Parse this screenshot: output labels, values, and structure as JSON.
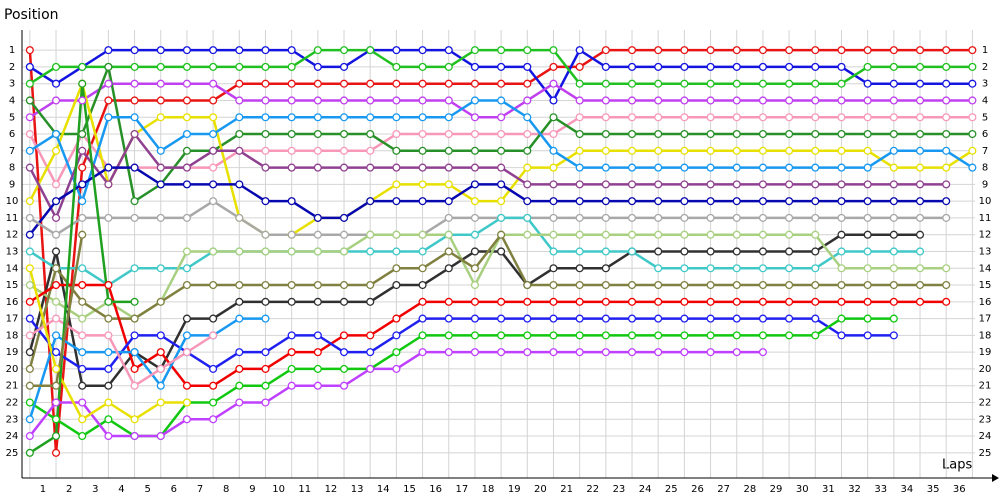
{
  "chart_data": {
    "type": "lap-chart",
    "y_label": "Position",
    "x_label": "Laps",
    "x": [
      0,
      1,
      2,
      3,
      4,
      5,
      6,
      7,
      8,
      9,
      10,
      11,
      12,
      13,
      14,
      15,
      16,
      17,
      18,
      19,
      20,
      21,
      22,
      23,
      24,
      25,
      26,
      27,
      28,
      29,
      30,
      31,
      32,
      33,
      34,
      35,
      36
    ],
    "xlim": [
      -0.3,
      36.1
    ],
    "ylim": [
      26.5,
      -0.2
    ],
    "grid": true,
    "yticks": [
      1,
      2,
      3,
      4,
      5,
      6,
      7,
      8,
      9,
      10,
      11,
      12,
      13,
      14,
      15,
      16,
      17,
      18,
      19,
      20,
      21,
      22,
      23,
      24,
      25
    ],
    "xticks": [
      {
        "value": 0.5,
        "label": "1"
      },
      {
        "value": 1.5,
        "label": "2"
      },
      {
        "value": 2.5,
        "label": "3"
      },
      {
        "value": 3.5,
        "label": "4"
      },
      {
        "value": 4.5,
        "label": "5"
      },
      {
        "value": 5.5,
        "label": "6"
      },
      {
        "value": 6.5,
        "label": "7"
      },
      {
        "value": 7.5,
        "label": "8"
      },
      {
        "value": 8.5,
        "label": "9"
      },
      {
        "value": 9.5,
        "label": "10"
      },
      {
        "value": 10.5,
        "label": "11"
      },
      {
        "value": 11.5,
        "label": "12"
      },
      {
        "value": 12.5,
        "label": "13"
      },
      {
        "value": 13.5,
        "label": "14"
      },
      {
        "value": 14.5,
        "label": "15"
      },
      {
        "value": 15.5,
        "label": "16"
      },
      {
        "value": 16.5,
        "label": "17"
      },
      {
        "value": 17.5,
        "label": "18"
      },
      {
        "value": 18.5,
        "label": "19"
      },
      {
        "value": 19.5,
        "label": "20"
      },
      {
        "value": 20.5,
        "label": "21"
      },
      {
        "value": 21.5,
        "label": "22"
      },
      {
        "value": 22.5,
        "label": "23"
      },
      {
        "value": 23.5,
        "label": "24"
      },
      {
        "value": 24.5,
        "label": "25"
      },
      {
        "value": 25.5,
        "label": "26"
      },
      {
        "value": 26.5,
        "label": "27"
      },
      {
        "value": 27.5,
        "label": "28"
      },
      {
        "value": 28.5,
        "label": "29"
      },
      {
        "value": 29.5,
        "label": "30"
      },
      {
        "value": 30.5,
        "label": "31"
      },
      {
        "value": 31.5,
        "label": "32"
      },
      {
        "value": 32.5,
        "label": "33"
      },
      {
        "value": 33.5,
        "label": "34"
      },
      {
        "value": 34.5,
        "label": "35"
      },
      {
        "value": 35.5,
        "label": "36"
      }
    ],
    "series": [
      {
        "color": "#e81414",
        "values": [
          1,
          25,
          8,
          4,
          4,
          4,
          4,
          4,
          3,
          3,
          3,
          3,
          3,
          3,
          3,
          3,
          3,
          3,
          3,
          3,
          2,
          2,
          1,
          1,
          1,
          1,
          1,
          1,
          1,
          1,
          1,
          1,
          1,
          1,
          1,
          1,
          1
        ]
      },
      {
        "color": "#1414e0",
        "values": [
          2,
          3,
          2,
          1,
          1,
          1,
          1,
          1,
          1,
          1,
          1,
          2,
          2,
          1,
          1,
          1,
          1,
          2,
          2,
          2,
          4,
          1,
          2,
          2,
          2,
          2,
          2,
          2,
          2,
          2,
          2,
          2,
          3,
          3,
          3,
          3,
          3
        ]
      },
      {
        "color": "#20c020",
        "values": [
          3,
          2,
          2,
          2,
          2,
          2,
          2,
          2,
          2,
          2,
          2,
          1,
          1,
          1,
          2,
          2,
          2,
          1,
          1,
          1,
          1,
          3,
          3,
          3,
          3,
          3,
          3,
          3,
          3,
          3,
          3,
          3,
          2,
          2,
          2,
          2,
          2
        ]
      },
      {
        "color": "#c040f0",
        "values": [
          5,
          4,
          4,
          3,
          3,
          3,
          3,
          3,
          4,
          4,
          4,
          4,
          4,
          4,
          4,
          4,
          4,
          5,
          5,
          4,
          3,
          4,
          4,
          4,
          4,
          4,
          4,
          4,
          4,
          4,
          4,
          4,
          4,
          4,
          4,
          4,
          4
        ]
      },
      {
        "color": "#f898b8",
        "values": [
          6,
          9,
          6,
          8,
          8,
          8,
          8,
          8,
          7,
          7,
          7,
          7,
          7,
          7,
          6,
          6,
          6,
          6,
          6,
          6,
          6,
          5,
          5,
          5,
          5,
          5,
          5,
          5,
          5,
          5,
          5,
          5,
          5,
          5,
          5,
          5,
          5
        ]
      },
      {
        "color": "#289028",
        "values": [
          4,
          6,
          6,
          2,
          10,
          9,
          7,
          7,
          6,
          6,
          6,
          6,
          6,
          6,
          7,
          7,
          7,
          7,
          7,
          7,
          5,
          6,
          6,
          6,
          6,
          6,
          6,
          6,
          6,
          6,
          6,
          6,
          6,
          6,
          6,
          6,
          6
        ]
      },
      {
        "color": "#e8e000",
        "values": [
          10,
          7,
          3,
          9,
          6,
          5,
          5,
          5,
          11,
          12,
          12,
          11,
          11,
          10,
          9,
          9,
          9,
          10,
          10,
          8,
          8,
          7,
          7,
          7,
          7,
          7,
          7,
          7,
          7,
          7,
          7,
          7,
          7,
          8,
          8,
          8,
          7
        ]
      },
      {
        "color": "#1898f0",
        "values": [
          7,
          6,
          10,
          5,
          5,
          7,
          6,
          6,
          5,
          5,
          5,
          5,
          5,
          5,
          5,
          5,
          5,
          4,
          4,
          5,
          7,
          8,
          8,
          8,
          8,
          8,
          8,
          8,
          8,
          8,
          8,
          8,
          8,
          7,
          7,
          7,
          8
        ]
      },
      {
        "color": "#904090",
        "values": [
          8,
          11,
          7,
          9,
          6,
          8,
          8,
          7,
          7,
          8,
          8,
          8,
          8,
          8,
          8,
          8,
          8,
          8,
          8,
          9,
          9,
          9,
          9,
          9,
          9,
          9,
          9,
          9,
          9,
          9,
          9,
          9,
          9,
          9,
          9,
          9,
          null
        ]
      },
      {
        "color": "#0808b0",
        "values": [
          12,
          10,
          9,
          8,
          8,
          9,
          9,
          9,
          9,
          10,
          10,
          11,
          11,
          10,
          10,
          10,
          10,
          9,
          9,
          10,
          10,
          10,
          10,
          10,
          10,
          10,
          10,
          10,
          10,
          10,
          10,
          10,
          10,
          10,
          10,
          10,
          null
        ]
      },
      {
        "color": "#a8a8a8",
        "values": [
          11,
          12,
          11,
          11,
          11,
          11,
          11,
          10,
          11,
          12,
          12,
          12,
          12,
          12,
          12,
          12,
          11,
          11,
          11,
          11,
          11,
          11,
          11,
          11,
          11,
          11,
          11,
          11,
          11,
          11,
          11,
          11,
          11,
          11,
          11,
          11,
          null
        ]
      },
      {
        "color": "#303030",
        "values": [
          19,
          13,
          21,
          21,
          19,
          20,
          17,
          17,
          16,
          16,
          16,
          16,
          16,
          16,
          15,
          15,
          14,
          13,
          13,
          15,
          14,
          14,
          14,
          13,
          13,
          13,
          13,
          13,
          13,
          13,
          13,
          12,
          12,
          12,
          12,
          null,
          null
        ]
      },
      {
        "color": "#40c8c8",
        "values": [
          13,
          14,
          14,
          15,
          14,
          14,
          14,
          13,
          13,
          13,
          13,
          13,
          13,
          13,
          13,
          13,
          12,
          12,
          11,
          11,
          13,
          13,
          13,
          13,
          14,
          14,
          14,
          14,
          14,
          14,
          14,
          13,
          13,
          13,
          13,
          null,
          null
        ]
      },
      {
        "color": "#a8d080",
        "values": [
          15,
          16,
          17,
          16,
          17,
          16,
          13,
          13,
          13,
          13,
          13,
          13,
          13,
          12,
          12,
          12,
          12,
          15,
          12,
          12,
          12,
          12,
          12,
          12,
          12,
          12,
          12,
          12,
          12,
          12,
          12,
          14,
          14,
          14,
          14,
          14,
          null
        ]
      },
      {
        "color": "#808040",
        "values": [
          20,
          14,
          16,
          17,
          17,
          16,
          15,
          15,
          15,
          15,
          15,
          15,
          15,
          15,
          14,
          14,
          13,
          14,
          12,
          15,
          15,
          15,
          15,
          15,
          15,
          15,
          15,
          15,
          15,
          15,
          15,
          15,
          15,
          15,
          15,
          15,
          null
        ]
      },
      {
        "color": "#f00000",
        "values": [
          16,
          15,
          15,
          15,
          20,
          19,
          21,
          21,
          20,
          20,
          19,
          19,
          18,
          18,
          17,
          16,
          16,
          16,
          16,
          16,
          16,
          16,
          16,
          16,
          16,
          16,
          16,
          16,
          16,
          16,
          16,
          16,
          16,
          16,
          16,
          16,
          null
        ]
      },
      {
        "color": "#2020f0",
        "values": [
          17,
          19,
          20,
          20,
          18,
          18,
          19,
          20,
          19,
          19,
          18,
          18,
          19,
          19,
          18,
          17,
          17,
          17,
          17,
          17,
          17,
          17,
          17,
          17,
          17,
          17,
          17,
          17,
          17,
          17,
          17,
          18,
          18,
          18,
          null,
          null,
          null
        ]
      },
      {
        "color": "#10c810",
        "values": [
          22,
          23,
          24,
          23,
          24,
          24,
          22,
          22,
          21,
          21,
          20,
          20,
          20,
          20,
          19,
          18,
          18,
          18,
          18,
          18,
          18,
          18,
          18,
          18,
          18,
          18,
          18,
          18,
          18,
          18,
          18,
          17,
          17,
          17,
          null,
          null,
          null
        ]
      },
      {
        "color": "#c040ff",
        "values": [
          24,
          22,
          22,
          24,
          24,
          24,
          23,
          23,
          22,
          22,
          21,
          21,
          21,
          20,
          20,
          19,
          19,
          19,
          19,
          19,
          19,
          19,
          19,
          19,
          19,
          19,
          19,
          19,
          19,
          null,
          null,
          null,
          null,
          null,
          null,
          null,
          null
        ]
      },
      {
        "color": "#1898f0",
        "values": [
          23,
          18,
          19,
          19,
          19,
          21,
          18,
          18,
          17,
          17,
          null,
          null,
          null,
          null,
          null,
          null,
          null,
          null,
          null,
          null,
          null,
          null,
          null,
          null,
          null,
          null,
          null,
          null,
          null,
          null,
          null,
          null,
          null,
          null,
          null,
          null,
          null
        ]
      },
      {
        "color": "#f898b8",
        "values": [
          18,
          17,
          18,
          18,
          21,
          20,
          19,
          18,
          null,
          null,
          null,
          null,
          null,
          null,
          null,
          null,
          null,
          null,
          null,
          null,
          null,
          null,
          null,
          null,
          null,
          null,
          null,
          null,
          null,
          null,
          null,
          null,
          null,
          null,
          null,
          null,
          null
        ]
      },
      {
        "color": "#e8e000",
        "values": [
          14,
          20,
          23,
          22,
          23,
          22,
          22,
          null,
          null,
          null,
          null,
          null,
          null,
          null,
          null,
          null,
          null,
          null,
          null,
          null,
          null,
          null,
          null,
          null,
          null,
          null,
          null,
          null,
          null,
          null,
          null,
          null,
          null,
          null,
          null,
          null,
          null
        ]
      },
      {
        "color": "#20a020",
        "values": [
          25,
          24,
          3,
          16,
          16,
          null,
          null,
          null,
          null,
          null,
          null,
          null,
          null,
          null,
          null,
          null,
          null,
          null,
          null,
          null,
          null,
          null,
          null,
          null,
          null,
          null,
          null,
          null,
          null,
          null,
          null,
          null,
          null,
          null,
          null,
          null,
          null
        ]
      },
      {
        "color": "#808040",
        "values": [
          21,
          21,
          12,
          null,
          null,
          null,
          null,
          null,
          null,
          null,
          null,
          null,
          null,
          null,
          null,
          null,
          null,
          null,
          null,
          null,
          null,
          null,
          null,
          null,
          null,
          null,
          null,
          null,
          null,
          null,
          null,
          null,
          null,
          null,
          null,
          null,
          null
        ]
      }
    ]
  }
}
